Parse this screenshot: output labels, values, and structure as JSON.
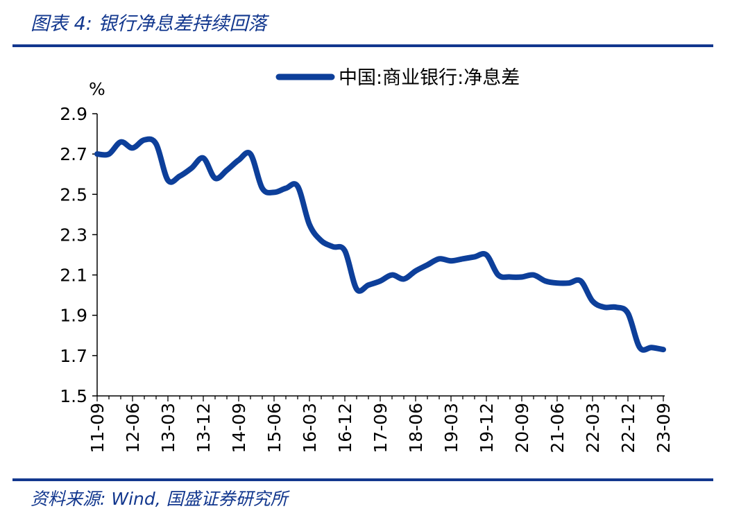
{
  "figure": {
    "title": "图表 4:  银行净息差持续回落",
    "source": "资料来源:  Wind, 国盛证券研究所"
  },
  "colors": {
    "accent": "#12378e",
    "series": "#0d3f9a"
  },
  "chart_data": {
    "type": "line",
    "title": "",
    "xlabel": "",
    "ylabel": "%",
    "ylim": [
      1.5,
      2.9
    ],
    "yticks": [
      "2.9",
      "2.7",
      "2.5",
      "2.3",
      "2.1",
      "1.9",
      "1.7",
      "1.5"
    ],
    "xtick_labels": [
      "11-09",
      "12-06",
      "13-03",
      "13-12",
      "14-09",
      "15-06",
      "16-03",
      "16-12",
      "17-09",
      "18-06",
      "19-03",
      "19-12",
      "20-09",
      "21-06",
      "22-03",
      "22-12",
      "23-09"
    ],
    "grid": false,
    "legend_position": "top-center",
    "x": [
      "11-09",
      "11-12",
      "12-03",
      "12-06",
      "12-09",
      "12-12",
      "13-03",
      "13-06",
      "13-09",
      "13-12",
      "14-03",
      "14-06",
      "14-09",
      "14-12",
      "15-03",
      "15-06",
      "15-09",
      "15-12",
      "16-03",
      "16-06",
      "16-09",
      "16-12",
      "17-03",
      "17-06",
      "17-09",
      "17-12",
      "18-03",
      "18-06",
      "18-09",
      "18-12",
      "19-03",
      "19-06",
      "19-09",
      "19-12",
      "20-03",
      "20-06",
      "20-09",
      "20-12",
      "21-03",
      "21-06",
      "21-09",
      "21-12",
      "22-03",
      "22-06",
      "22-09",
      "22-12",
      "23-03",
      "23-06",
      "23-09"
    ],
    "series": [
      {
        "name": "中国:商业银行:净息差",
        "values": [
          2.7,
          2.7,
          2.76,
          2.73,
          2.77,
          2.75,
          2.57,
          2.59,
          2.63,
          2.68,
          2.58,
          2.62,
          2.67,
          2.7,
          2.53,
          2.51,
          2.53,
          2.54,
          2.35,
          2.27,
          2.24,
          2.22,
          2.03,
          2.05,
          2.07,
          2.1,
          2.08,
          2.12,
          2.15,
          2.18,
          2.17,
          2.18,
          2.19,
          2.2,
          2.1,
          2.09,
          2.09,
          2.1,
          2.07,
          2.06,
          2.06,
          2.07,
          1.97,
          1.94,
          1.94,
          1.91,
          1.74,
          1.74,
          1.73
        ]
      }
    ]
  }
}
